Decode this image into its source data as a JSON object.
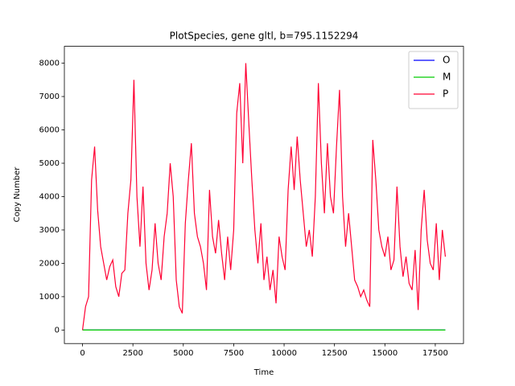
{
  "chart_data": {
    "type": "line",
    "title": "PlotSpecies, gene gltl, b=795.1152294",
    "x_label": "Time",
    "y_label": "Copy Number",
    "xlim": [
      -900,
      18900
    ],
    "ylim": [
      -405,
      8505
    ],
    "xticks": [
      0,
      2500,
      5000,
      7500,
      10000,
      12500,
      15000,
      17500
    ],
    "yticks": [
      0,
      1000,
      2000,
      3000,
      4000,
      5000,
      6000,
      7000,
      8000
    ],
    "legend": "upper right",
    "series": [
      {
        "name": "O",
        "color": "#0000ff",
        "x": [
          0,
          18000
        ],
        "values": [
          0,
          0
        ]
      },
      {
        "name": "M",
        "color": "#00cc00",
        "x": [
          0,
          18000
        ],
        "values": [
          0,
          0
        ]
      },
      {
        "name": "P",
        "color": "#ff0033",
        "x": [
          0,
          150,
          300,
          450,
          600,
          750,
          900,
          1050,
          1200,
          1350,
          1500,
          1650,
          1800,
          1950,
          2100,
          2250,
          2400,
          2550,
          2700,
          2850,
          3000,
          3150,
          3300,
          3450,
          3600,
          3750,
          3900,
          4050,
          4200,
          4350,
          4500,
          4650,
          4800,
          4950,
          5100,
          5250,
          5400,
          5550,
          5700,
          5850,
          6000,
          6150,
          6300,
          6450,
          6600,
          6750,
          6900,
          7050,
          7200,
          7350,
          7500,
          7650,
          7800,
          7950,
          8100,
          8250,
          8400,
          8550,
          8700,
          8850,
          9000,
          9150,
          9300,
          9450,
          9600,
          9750,
          9900,
          10050,
          10200,
          10350,
          10500,
          10650,
          10800,
          10950,
          11100,
          11250,
          11400,
          11550,
          11700,
          11850,
          12000,
          12150,
          12300,
          12450,
          12600,
          12750,
          12900,
          13050,
          13200,
          13350,
          13500,
          13650,
          13800,
          13950,
          14100,
          14250,
          14400,
          14550,
          14700,
          14850,
          15000,
          15150,
          15300,
          15450,
          15600,
          15750,
          15900,
          16050,
          16200,
          16350,
          16500,
          16650,
          16800,
          16950,
          17100,
          17250,
          17400,
          17550,
          17700,
          17850,
          18000
        ],
        "values": [
          0,
          700,
          1000,
          4500,
          5500,
          3600,
          2500,
          2000,
          1500,
          1900,
          2100,
          1300,
          1000,
          1700,
          1800,
          3500,
          4500,
          7500,
          4000,
          2500,
          4300,
          2000,
          1200,
          1800,
          3200,
          2000,
          1500,
          2800,
          3500,
          5000,
          4000,
          1500,
          700,
          500,
          3200,
          4500,
          5600,
          3500,
          2800,
          2500,
          2000,
          1200,
          4200,
          2800,
          2300,
          3300,
          2300,
          1500,
          2800,
          1800,
          3000,
          6500,
          7400,
          5000,
          8000,
          6200,
          4500,
          3000,
          2000,
          3200,
          1500,
          2200,
          1200,
          1800,
          800,
          2800,
          2200,
          1800,
          4200,
          5500,
          4200,
          5800,
          4500,
          3500,
          2500,
          3000,
          2200,
          4000,
          7400,
          5000,
          3500,
          5600,
          4000,
          3500,
          5500,
          7200,
          4000,
          2500,
          3500,
          2500,
          1500,
          1300,
          1000,
          1200,
          900,
          700,
          5700,
          4500,
          3000,
          2500,
          2200,
          2800,
          1800,
          2100,
          4300,
          2500,
          1600,
          2200,
          1400,
          1200,
          2400,
          600,
          3000,
          4200,
          2700,
          2000,
          1800,
          3200,
          1500,
          3000,
          2200
        ]
      }
    ]
  }
}
